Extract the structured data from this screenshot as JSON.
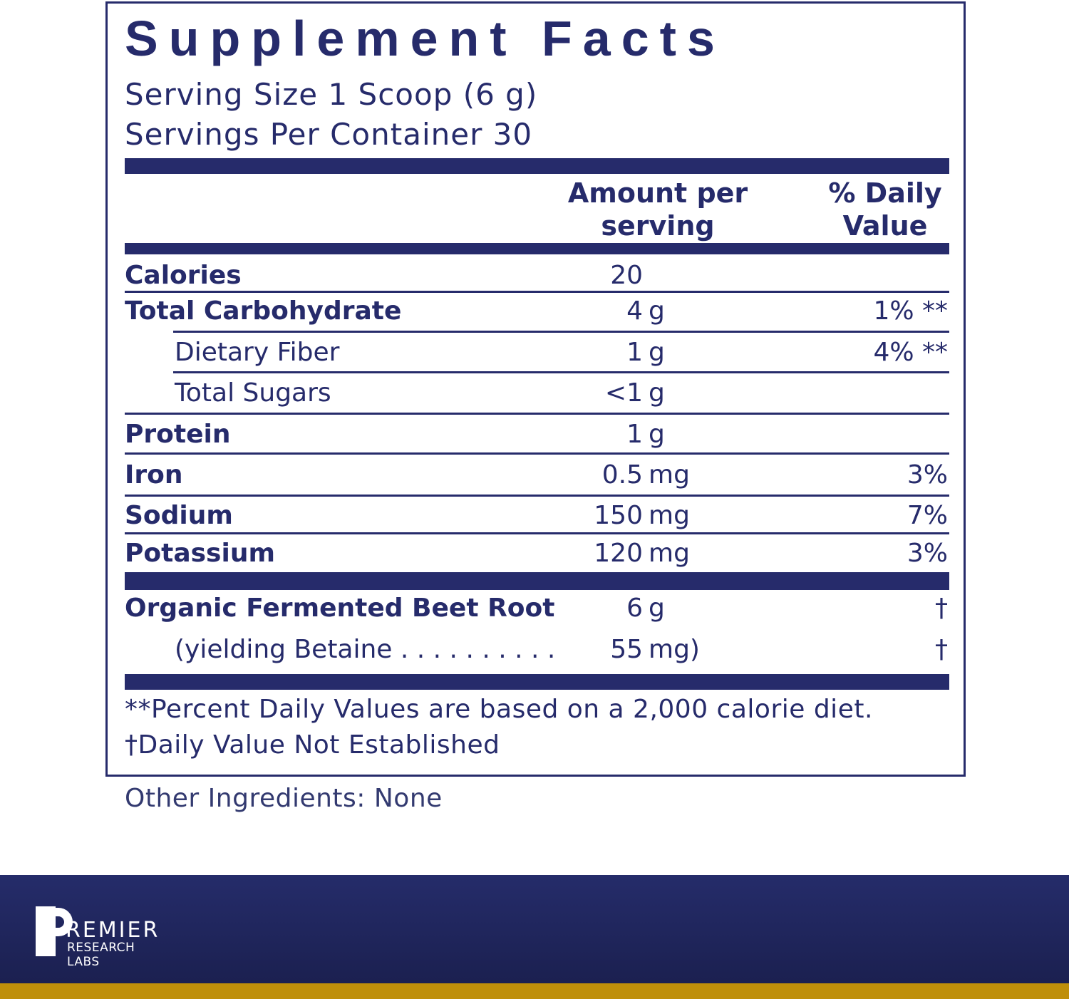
{
  "label": {
    "title": "Supplement Facts",
    "serving_size": "Serving Size 1 Scoop (6 g)",
    "servings_per_container": "Servings Per Container 30",
    "header_amount": "Amount per serving",
    "header_dv": "% Daily Value",
    "rows": [
      {
        "label": "Calories",
        "amount": "20",
        "unit": "",
        "dv": ""
      },
      {
        "label": "Total Carbohydrate",
        "amount": "4",
        "unit": "g",
        "dv": "1% **"
      },
      {
        "label": "Dietary Fiber",
        "amount": "1",
        "unit": "g",
        "dv": "4% **"
      },
      {
        "label": "Total Sugars",
        "amount": "<1",
        "unit": "g",
        "dv": ""
      },
      {
        "label": "Protein",
        "amount": "1",
        "unit": "g",
        "dv": ""
      },
      {
        "label": "Iron",
        "amount": "0.5",
        "unit": "mg",
        "dv": "3%"
      },
      {
        "label": "Sodium",
        "amount": "150",
        "unit": "mg",
        "dv": "7%"
      },
      {
        "label": "Potassium",
        "amount": "120",
        "unit": "mg",
        "dv": "3%"
      }
    ],
    "ingredients": [
      {
        "label": "Organic Fermented Beet Root",
        "amount": "6",
        "unit": "g",
        "dv": "†"
      },
      {
        "label": "(yielding Betaine . . . . . . . . . .",
        "amount": "55",
        "unit": "mg)",
        "dv": "†"
      }
    ],
    "footnote_1": "**Percent Daily Values are based on a 2,000 calorie diet.",
    "footnote_2": "†Daily Value Not Established"
  },
  "other_ingredients": "Other Ingredients: None",
  "brand": {
    "logo_text": "PREMIER RESEARCH LABS",
    "logo_line1": "REMIER",
    "logo_line2": "RESEARCH LABS"
  },
  "colors": {
    "navy": "#262b6b",
    "footer": "#222966",
    "gold": "#bf8f0a"
  }
}
